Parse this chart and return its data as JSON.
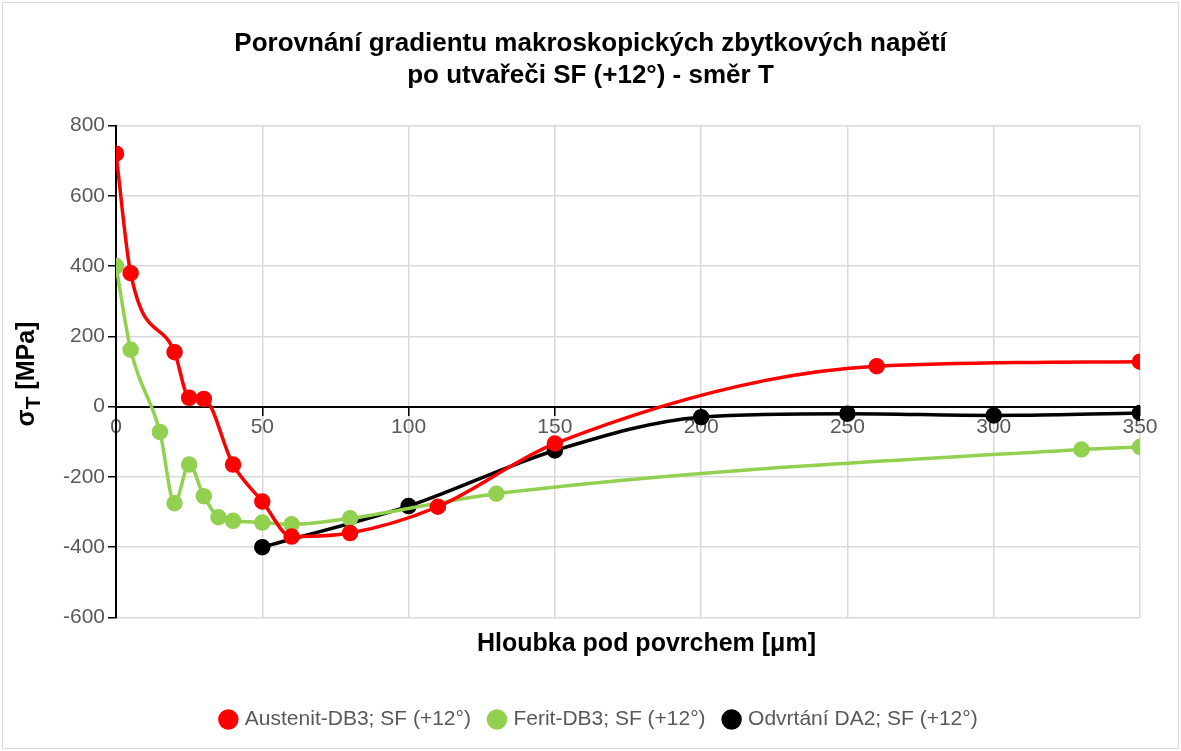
{
  "chart_data": {
    "type": "line",
    "title": "Porovnání gradientu makroskopických zbytkových napětí\npo utvařeči SF (+12°) - směr T",
    "xlabel": "Hloubka pod povrchem [μm]",
    "ylabel": "σ$_{T}$ [MPa]",
    "xlim": [
      0,
      350
    ],
    "xticks": [
      0,
      50,
      100,
      150,
      200,
      250,
      300,
      350
    ],
    "ylim": [
      -600,
      800
    ],
    "yticks": [
      -600,
      -400,
      -200,
      0,
      200,
      400,
      600,
      800
    ],
    "grid": true,
    "legend": "bottom",
    "marker": "circle",
    "line_style": "solid",
    "series": [
      {
        "name": "Austenit-DB3; SF (+12°)",
        "color": "#ff0000",
        "x": [
          0,
          5,
          20,
          25,
          30,
          40,
          50,
          60,
          80,
          110,
          150,
          260,
          350
        ],
        "values": [
          720,
          380,
          155,
          25,
          22,
          -165,
          -270,
          -370,
          -360,
          -285,
          -105,
          115,
          128
        ]
      },
      {
        "name": "Ferit-DB3; SF (+12°)",
        "color": "#92d050",
        "x": [
          0,
          5,
          15,
          20,
          25,
          30,
          35,
          40,
          50,
          60,
          80,
          130,
          330,
          350
        ],
        "values": [
          400,
          162,
          -72,
          -275,
          -165,
          -255,
          -315,
          -325,
          -330,
          -335,
          -318,
          -248,
          -122,
          -115
        ]
      },
      {
        "name": "Odvrtání DA2; SF (+12°)",
        "color": "#000000",
        "x": [
          50,
          100,
          150,
          200,
          250,
          300,
          350
        ],
        "values": [
          -400,
          -283,
          -125,
          -30,
          -20,
          -25,
          -18
        ]
      }
    ]
  }
}
